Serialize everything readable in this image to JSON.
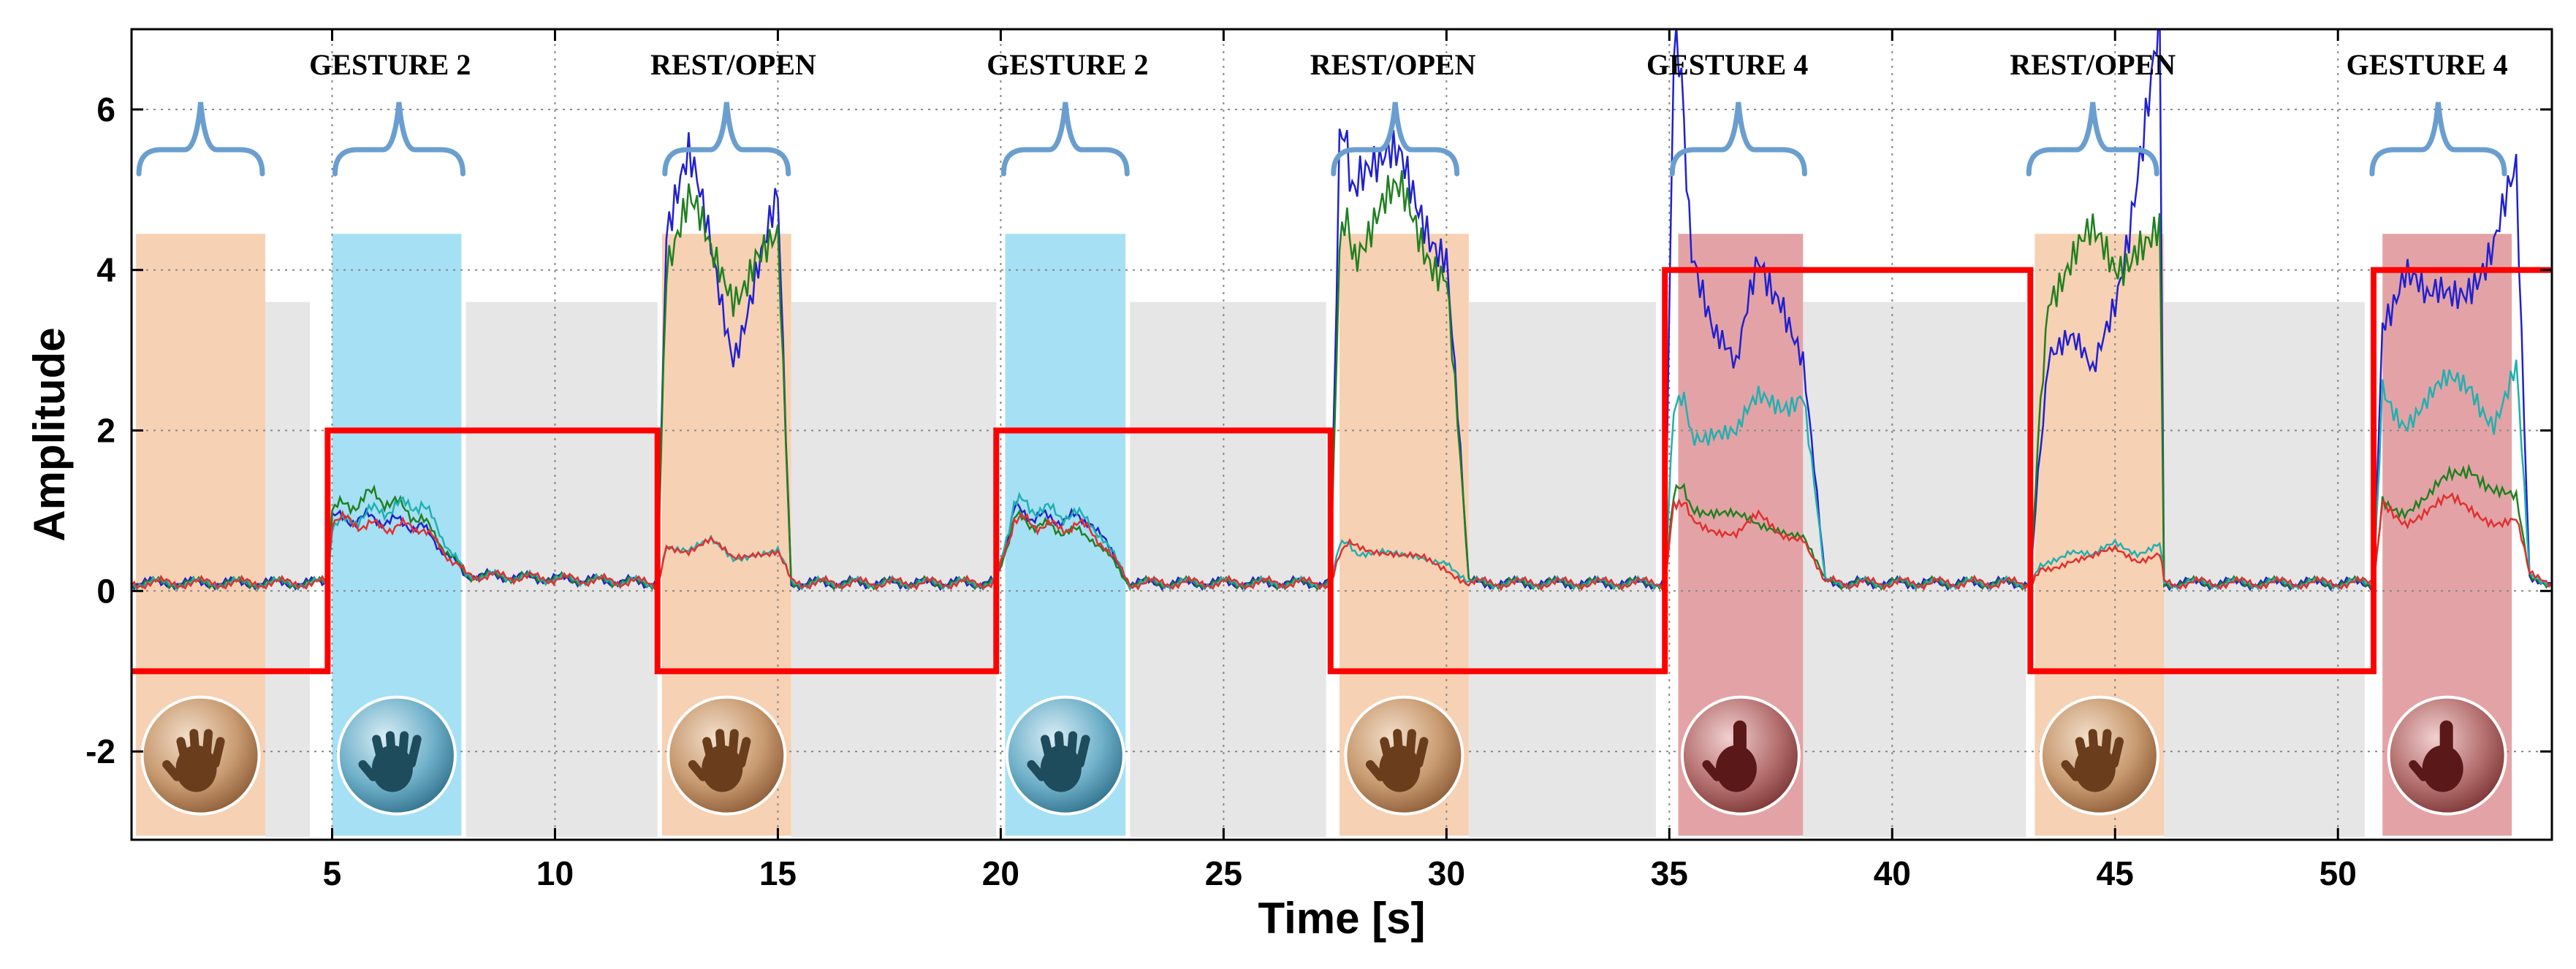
{
  "chart_data": {
    "type": "line",
    "title": "",
    "xlabel": "Time [s]",
    "ylabel": "Amplitude",
    "xlim": [
      0.5,
      54.8
    ],
    "ylim": [
      -3.1,
      7.0
    ],
    "xticks": [
      5,
      10,
      15,
      20,
      25,
      30,
      35,
      40,
      45,
      50
    ],
    "yticks": [
      -2,
      0,
      2,
      4,
      6
    ],
    "grid": true,
    "colors": {
      "rest": "#f7d1b3",
      "gesture2": "#a6e0f5",
      "gesture4": "#e3a3a6",
      "idle": "#e6e6e6",
      "brace": "#6a9ecf",
      "label_line": "#ff0000"
    },
    "labels": [
      {
        "text": "GESTURE 2",
        "x": 6.3
      },
      {
        "text": "REST/OPEN",
        "x": 14.0
      },
      {
        "text": "GESTURE 2",
        "x": 21.5
      },
      {
        "text": "REST/OPEN",
        "x": 28.8
      },
      {
        "text": "GESTURE 4",
        "x": 36.3
      },
      {
        "text": "REST/OPEN",
        "x": 44.5
      },
      {
        "text": "GESTURE 4",
        "x": 52.0
      }
    ],
    "phases": [
      {
        "class": "rest",
        "x0": 0.6,
        "x1": 3.5,
        "icon": "open-hand-icon"
      },
      {
        "class": "gesture2",
        "x0": 5.0,
        "x1": 7.9,
        "icon": "gesture2-hand-icon"
      },
      {
        "class": "rest",
        "x0": 12.4,
        "x1": 15.3,
        "icon": "open-hand-icon"
      },
      {
        "class": "gesture2",
        "x0": 20.1,
        "x1": 22.8,
        "icon": "gesture2-hand-icon"
      },
      {
        "class": "rest",
        "x0": 27.6,
        "x1": 30.5,
        "icon": "open-hand-icon"
      },
      {
        "class": "gesture4",
        "x0": 35.2,
        "x1": 38.0,
        "icon": "gesture4-hand-icon"
      },
      {
        "class": "rest",
        "x0": 43.2,
        "x1": 46.1,
        "icon": "open-hand-icon"
      },
      {
        "class": "gesture4",
        "x0": 51.0,
        "x1": 53.9,
        "icon": "gesture4-hand-icon"
      }
    ],
    "idle_regions": [
      {
        "x0": 3.5,
        "x1": 4.5,
        "y1": 3.6
      },
      {
        "x0": 8.0,
        "x1": 12.3,
        "y1": 3.6
      },
      {
        "x0": 15.3,
        "x1": 19.9,
        "y1": 3.6
      },
      {
        "x0": 22.9,
        "x1": 27.3,
        "y1": 3.6
      },
      {
        "x0": 30.5,
        "x1": 34.7,
        "y1": 3.6
      },
      {
        "x0": 38.0,
        "x1": 43.0,
        "y1": 3.6
      },
      {
        "x0": 46.1,
        "x1": 50.6,
        "y1": 3.6
      }
    ],
    "braces": [
      {
        "x0": 0.6,
        "x1": 3.5
      },
      {
        "x0": 5.0,
        "x1": 8.0
      },
      {
        "x0": 12.4,
        "x1": 15.3
      },
      {
        "x0": 20.0,
        "x1": 22.9
      },
      {
        "x0": 27.4,
        "x1": 30.3
      },
      {
        "x0": 35.0,
        "x1": 38.1
      },
      {
        "x0": 43.0,
        "x1": 46.0
      },
      {
        "x0": 50.7,
        "x1": 53.8
      }
    ],
    "label_line": {
      "x": [
        0.5,
        4.9,
        4.9,
        12.3,
        12.3,
        19.9,
        19.9,
        27.4,
        27.4,
        34.9,
        34.9,
        43.1,
        43.1,
        50.8,
        50.8,
        54.8
      ],
      "y": [
        -1,
        -1,
        2,
        2,
        -1,
        -1,
        2,
        2,
        -1,
        -1,
        4,
        4,
        -1,
        -1,
        4,
        4
      ]
    },
    "series": [
      {
        "color": "#2020d0",
        "x": [
          0.5,
          4.9,
          5.0,
          6.0,
          7.0,
          8.0,
          12.3,
          12.5,
          13.0,
          13.5,
          14.0,
          14.5,
          15.0,
          15.3,
          19.9,
          20.3,
          21.0,
          22.0,
          22.9,
          27.4,
          27.6,
          28.0,
          28.5,
          29.0,
          29.5,
          30.0,
          30.5,
          34.9,
          35.1,
          35.5,
          36.0,
          36.5,
          37.0,
          37.5,
          38.0,
          38.5,
          43.1,
          43.5,
          44.0,
          44.5,
          45.0,
          45.5,
          46.0,
          46.1,
          50.8,
          51.0,
          51.5,
          52.0,
          52.5,
          53.0,
          53.5,
          54.0,
          54.3,
          54.8
        ],
        "y": [
          0.1,
          0.1,
          0.9,
          0.9,
          0.8,
          0.2,
          0.1,
          4.6,
          5.1,
          4.2,
          3.1,
          4.0,
          4.6,
          0.1,
          0.1,
          1.0,
          0.9,
          0.9,
          0.1,
          0.1,
          5.3,
          5.4,
          5.0,
          5.2,
          4.9,
          4.3,
          0.1,
          0.1,
          6.9,
          4.6,
          3.2,
          2.6,
          4.2,
          3.9,
          2.8,
          0.1,
          0.1,
          3.1,
          3.0,
          2.6,
          3.8,
          5.4,
          6.7,
          0.1,
          0.1,
          3.6,
          4.0,
          3.4,
          3.7,
          4.1,
          4.3,
          4.9,
          0.2,
          0.1
        ]
      },
      {
        "color": "#208020",
        "x": [
          0.5,
          4.9,
          5.0,
          6.0,
          7.0,
          8.0,
          12.3,
          12.5,
          13.0,
          13.5,
          14.0,
          14.5,
          15.0,
          15.3,
          19.9,
          20.3,
          21.0,
          22.0,
          22.9,
          27.4,
          27.6,
          28.0,
          28.5,
          29.0,
          29.5,
          30.0,
          30.5,
          34.9,
          35.1,
          35.5,
          36.0,
          36.5,
          37.0,
          37.5,
          38.0,
          38.5,
          43.1,
          43.5,
          44.0,
          44.5,
          45.0,
          45.5,
          46.0,
          46.1,
          50.8,
          51.0,
          51.5,
          52.0,
          52.5,
          53.0,
          53.5,
          54.0,
          54.3,
          54.8
        ],
        "y": [
          0.1,
          0.1,
          1.0,
          1.2,
          0.9,
          0.2,
          0.1,
          4.3,
          4.7,
          4.0,
          3.8,
          4.4,
          4.2,
          0.1,
          0.1,
          0.9,
          0.8,
          0.7,
          0.1,
          0.1,
          4.2,
          4.5,
          4.6,
          4.7,
          4.4,
          4.2,
          0.1,
          0.1,
          1.3,
          1.1,
          1.0,
          0.9,
          0.8,
          0.8,
          0.7,
          0.1,
          0.1,
          3.9,
          4.0,
          4.2,
          4.1,
          4.6,
          4.4,
          0.1,
          0.1,
          1.2,
          1.0,
          1.1,
          1.4,
          1.6,
          1.3,
          1.1,
          0.2,
          0.1
        ]
      },
      {
        "color": "#20b0b0",
        "x": [
          0.5,
          4.9,
          5.0,
          6.0,
          7.0,
          8.0,
          12.3,
          12.5,
          13.0,
          13.5,
          14.0,
          14.5,
          15.0,
          15.3,
          19.9,
          20.3,
          21.0,
          22.0,
          22.9,
          27.4,
          27.6,
          28.0,
          28.5,
          29.0,
          29.5,
          30.0,
          30.5,
          34.9,
          35.1,
          35.5,
          36.0,
          36.5,
          37.0,
          37.5,
          38.0,
          38.5,
          43.1,
          43.5,
          44.0,
          44.5,
          45.0,
          45.5,
          46.0,
          46.1,
          50.8,
          51.0,
          51.5,
          52.0,
          52.5,
          53.0,
          53.5,
          54.0,
          54.3,
          54.8
        ],
        "y": [
          0.1,
          0.1,
          0.8,
          1.0,
          1.1,
          0.2,
          0.1,
          0.6,
          0.5,
          0.6,
          0.4,
          0.5,
          0.5,
          0.1,
          0.1,
          1.1,
          1.0,
          0.9,
          0.1,
          0.1,
          0.6,
          0.5,
          0.5,
          0.4,
          0.4,
          0.4,
          0.1,
          0.1,
          2.5,
          2.0,
          2.1,
          1.9,
          2.3,
          2.4,
          2.6,
          0.1,
          0.1,
          0.4,
          0.5,
          0.4,
          0.6,
          0.5,
          0.6,
          0.1,
          0.1,
          2.6,
          2.2,
          2.3,
          2.5,
          2.6,
          2.2,
          2.7,
          0.2,
          0.1
        ]
      },
      {
        "color": "#e03030",
        "x": [
          0.5,
          4.9,
          5.0,
          6.0,
          7.0,
          8.0,
          12.3,
          12.5,
          13.0,
          13.5,
          14.0,
          14.5,
          15.0,
          15.3,
          19.9,
          20.3,
          21.0,
          22.0,
          22.9,
          27.4,
          27.6,
          28.0,
          28.5,
          29.0,
          29.5,
          30.0,
          30.5,
          34.9,
          35.1,
          35.5,
          36.0,
          36.5,
          37.0,
          37.5,
          38.0,
          38.5,
          43.1,
          43.5,
          44.0,
          44.5,
          45.0,
          45.5,
          46.0,
          46.1,
          50.8,
          51.0,
          51.5,
          52.0,
          52.5,
          53.0,
          53.5,
          54.0,
          54.3,
          54.8
        ],
        "y": [
          0.1,
          0.1,
          0.9,
          0.8,
          0.8,
          0.2,
          0.1,
          0.6,
          0.5,
          0.6,
          0.4,
          0.5,
          0.5,
          0.1,
          0.1,
          0.9,
          0.8,
          0.8,
          0.1,
          0.1,
          0.5,
          0.6,
          0.5,
          0.4,
          0.4,
          0.3,
          0.1,
          0.1,
          1.2,
          0.9,
          0.8,
          0.7,
          0.9,
          0.7,
          0.7,
          0.1,
          0.1,
          0.3,
          0.4,
          0.4,
          0.5,
          0.4,
          0.5,
          0.1,
          0.1,
          1.1,
          0.9,
          1.0,
          1.1,
          1.0,
          0.9,
          0.9,
          0.2,
          0.1
        ]
      }
    ]
  }
}
